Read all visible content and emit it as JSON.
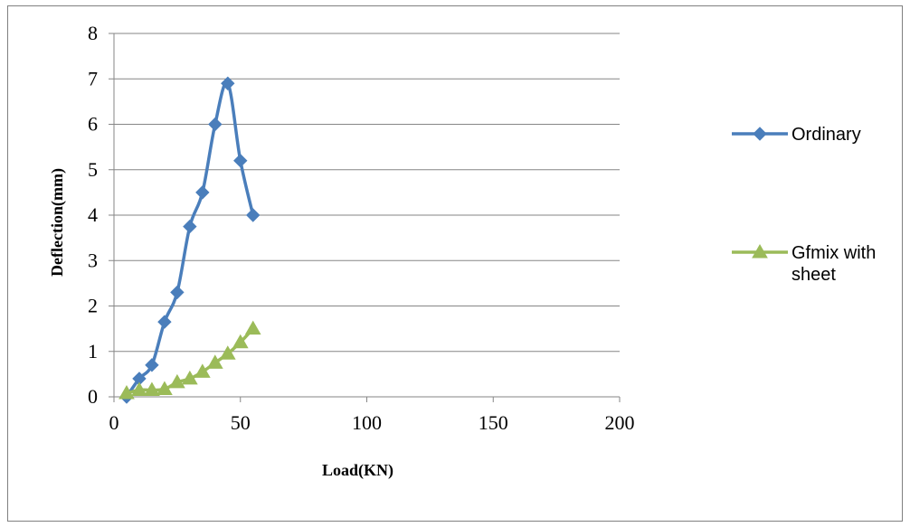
{
  "chart_data": {
    "type": "line",
    "title": "",
    "xlabel": "Load(KN)",
    "ylabel": "Deflection(mm)",
    "xlim": [
      0,
      200
    ],
    "ylim": [
      0,
      8
    ],
    "x_ticks": [
      "0",
      "50",
      "100",
      "150",
      "200"
    ],
    "y_ticks": [
      "0",
      "1",
      "2",
      "3",
      "4",
      "5",
      "6",
      "7",
      "8"
    ],
    "grid": "horizontal",
    "legend_position": "right",
    "series": [
      {
        "name": "Ordinary",
        "color": "#4A7EBB",
        "marker": "diamond",
        "x": [
          5,
          10,
          15,
          20,
          25,
          30,
          35,
          40,
          45,
          50,
          55
        ],
        "y": [
          0,
          0.4,
          0.7,
          1.65,
          2.3,
          3.75,
          4.5,
          6.0,
          6.9,
          5.2,
          4.0
        ]
      },
      {
        "name": "Gfmix with sheet",
        "name_lines": [
          "Gfmix with",
          "sheet"
        ],
        "color": "#9BBB59",
        "marker": "triangle",
        "x": [
          5,
          10,
          15,
          20,
          25,
          30,
          35,
          40,
          45,
          50,
          55
        ],
        "y": [
          0.08,
          0.15,
          0.15,
          0.17,
          0.32,
          0.4,
          0.55,
          0.75,
          0.95,
          1.2,
          1.5
        ]
      }
    ]
  }
}
